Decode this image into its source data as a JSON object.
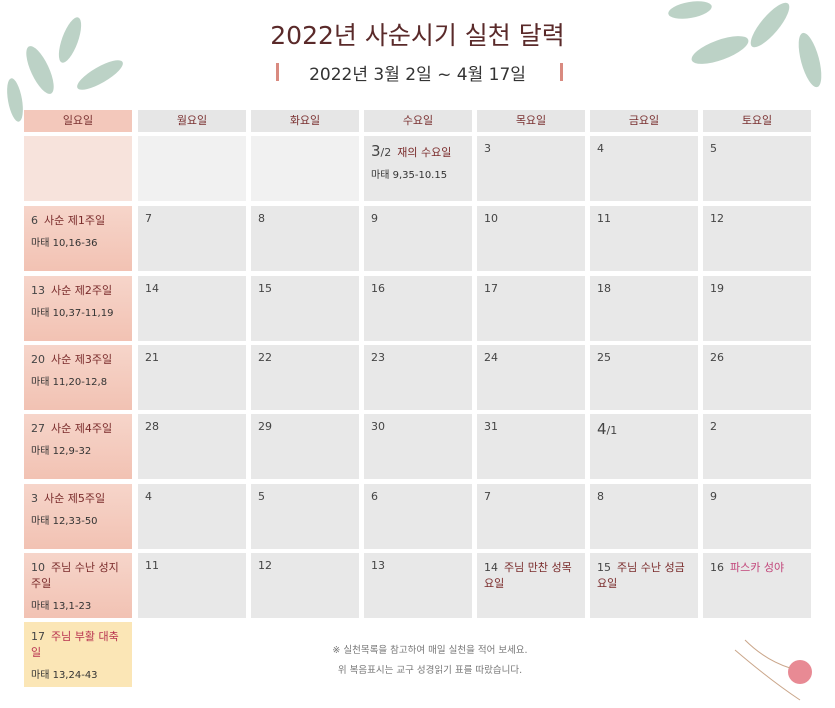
{
  "header": {
    "title": "2022년 사순시기 실천 달력",
    "subtitle": "2022년 3월 2일 ~ 4월 17일"
  },
  "weekdays": [
    "일요일",
    "월요일",
    "화요일",
    "수요일",
    "목요일",
    "금요일",
    "토요일"
  ],
  "weeks": [
    [
      null,
      null,
      null,
      {
        "day": "3",
        "suffix": "/2",
        "note": "재의 수요일",
        "reading": "마태 9,35-10.15"
      },
      {
        "day": "3"
      },
      {
        "day": "4"
      },
      {
        "day": "5"
      }
    ],
    [
      {
        "day": "6",
        "note": "사순 제1주일",
        "reading": "마태 10,16-36"
      },
      {
        "day": "7"
      },
      {
        "day": "8"
      },
      {
        "day": "9"
      },
      {
        "day": "10"
      },
      {
        "day": "11"
      },
      {
        "day": "12"
      }
    ],
    [
      {
        "day": "13",
        "note": "사순 제2주일",
        "reading": "마태 10,37-11,19"
      },
      {
        "day": "14"
      },
      {
        "day": "15"
      },
      {
        "day": "16"
      },
      {
        "day": "17"
      },
      {
        "day": "18"
      },
      {
        "day": "19"
      }
    ],
    [
      {
        "day": "20",
        "note": "사순 제3주일",
        "reading": "마태 11,20-12,8"
      },
      {
        "day": "21"
      },
      {
        "day": "22"
      },
      {
        "day": "23"
      },
      {
        "day": "24"
      },
      {
        "day": "25"
      },
      {
        "day": "26"
      }
    ],
    [
      {
        "day": "27",
        "note": "사순 제4주일",
        "reading": "마태 12,9-32"
      },
      {
        "day": "28"
      },
      {
        "day": "29"
      },
      {
        "day": "30"
      },
      {
        "day": "31"
      },
      {
        "day": "4",
        "suffix": "/1"
      },
      {
        "day": "2"
      }
    ],
    [
      {
        "day": "3",
        "note": "사순 제5주일",
        "reading": "마태 12,33-50"
      },
      {
        "day": "4"
      },
      {
        "day": "5"
      },
      {
        "day": "6"
      },
      {
        "day": "7"
      },
      {
        "day": "8"
      },
      {
        "day": "9"
      }
    ],
    [
      {
        "day": "10",
        "note": "주님 수난 성지 주일",
        "reading": "마태 13,1-23"
      },
      {
        "day": "11"
      },
      {
        "day": "12"
      },
      {
        "day": "13"
      },
      {
        "day": "14",
        "note": "주님 만찬 성목요일"
      },
      {
        "day": "15",
        "note": "주님 수난 성금요일"
      },
      {
        "day": "16",
        "note": "파스카 성야",
        "color": "#c2457a"
      }
    ],
    [
      {
        "day": "17",
        "note": "주님 부활 대축일",
        "reading": "마태 13,24-43",
        "color": "#b8324f"
      }
    ]
  ],
  "footer": [
    "※ 실천목록을 참고하여 매일 실천을 적어 보세요.",
    "위 복음표시는 교구 성경읽기 표를 따랐습니다."
  ]
}
